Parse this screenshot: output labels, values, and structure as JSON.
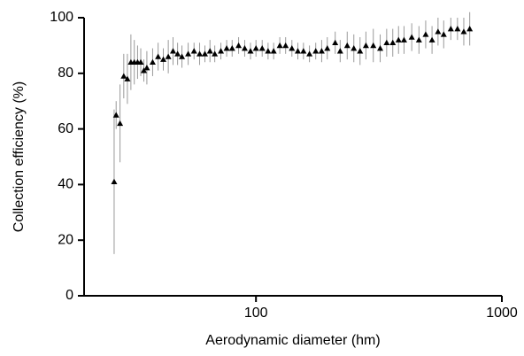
{
  "chart_data": {
    "type": "scatter",
    "x_label": "Aerodynamic diameter (hm)",
    "y_label": "Collection efficiency (%)",
    "xscale": "log",
    "xlim": [
      20,
      1000
    ],
    "xticks": [
      100,
      1000
    ],
    "ylim": [
      0,
      100
    ],
    "yticks": [
      0,
      20,
      40,
      60,
      80,
      100
    ],
    "color": "#000000",
    "error_color": "#999999",
    "x": [
      26.5,
      27,
      28,
      29,
      30,
      31,
      32,
      33,
      34,
      35,
      36,
      38,
      40,
      42,
      44,
      46,
      48,
      50,
      53,
      56,
      59,
      62,
      65,
      68,
      72,
      76,
      80,
      85,
      90,
      95,
      100,
      106,
      112,
      118,
      125,
      132,
      140,
      148,
      156,
      165,
      175,
      185,
      195,
      210,
      220,
      235,
      250,
      265,
      280,
      300,
      320,
      340,
      360,
      380,
      400,
      430,
      460,
      490,
      520,
      550,
      580,
      620,
      660,
      700,
      740
    ],
    "values": [
      41,
      65,
      62,
      79,
      78,
      84,
      84,
      84,
      84,
      81,
      82,
      84,
      86,
      85,
      86,
      88,
      87,
      86,
      87,
      88,
      87,
      87,
      88,
      87,
      88,
      89,
      89,
      90,
      89,
      88,
      89,
      89,
      88,
      88,
      90,
      90,
      89,
      88,
      88,
      87,
      88,
      88,
      89,
      91,
      88,
      90,
      89,
      88,
      90,
      90,
      89,
      91,
      91,
      92,
      92,
      93,
      92,
      94,
      92,
      95,
      94,
      96,
      96,
      95,
      96
    ],
    "errors": [
      26,
      5,
      14,
      8,
      9,
      10,
      8,
      6,
      5,
      4,
      6,
      5,
      5,
      4,
      6,
      5,
      4,
      4,
      4,
      3,
      4,
      3,
      4,
      3,
      3,
      3,
      3,
      3,
      3,
      3,
      3,
      3,
      3,
      3,
      3,
      3,
      3,
      3,
      3,
      3,
      3,
      4,
      4,
      4,
      4,
      5,
      5,
      5,
      5,
      6,
      5,
      5,
      5,
      5,
      5,
      5,
      5,
      5,
      5,
      5,
      5,
      4,
      4,
      5,
      6
    ]
  }
}
